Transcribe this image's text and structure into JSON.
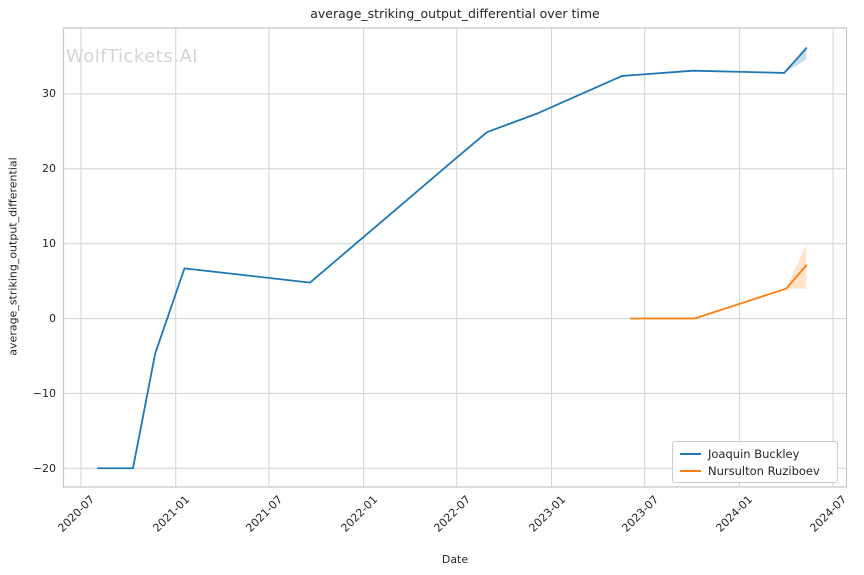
{
  "chart_data": {
    "type": "line",
    "title": "average_striking_output_differential over time",
    "xlabel": "Date",
    "ylabel": "average_striking_output_differential",
    "watermark": "WolfTickets.AI",
    "grid": true,
    "legend_position": "lower right",
    "xlim": [
      "2020-05-28",
      "2024-07-27"
    ],
    "ylim": [
      -22.5,
      38.8
    ],
    "x_ticks": [
      "2020-07",
      "2021-01",
      "2021-07",
      "2022-01",
      "2022-07",
      "2023-01",
      "2023-07",
      "2024-01",
      "2024-07"
    ],
    "y_ticks": [
      -20,
      -10,
      0,
      10,
      20,
      30
    ],
    "series": [
      {
        "name": "Joaquin Buckley",
        "color": "#1f77b4",
        "points": [
          [
            "2020-08-03",
            -20
          ],
          [
            "2020-10-10",
            -20
          ],
          [
            "2020-11-22",
            -4.7
          ],
          [
            "2021-01-18",
            6.7
          ],
          [
            "2021-09-19",
            4.8
          ],
          [
            "2022-07-01",
            21.5
          ],
          [
            "2022-08-29",
            24.9
          ],
          [
            "2022-12-05",
            27.4
          ],
          [
            "2023-05-18",
            32.4
          ],
          [
            "2023-10-03",
            33.1
          ],
          [
            "2024-03-28",
            32.8
          ],
          [
            "2024-05-10",
            36.1
          ]
        ],
        "band": [
          [
            "2024-03-28",
            32.8,
            32.8
          ],
          [
            "2024-05-10",
            34.6,
            36.4
          ]
        ],
        "band_alpha": 0.25
      },
      {
        "name": "Nursulton Ruziboev",
        "color": "#ff7f0e",
        "points": [
          [
            "2023-06-04",
            0
          ],
          [
            "2023-10-06",
            0
          ],
          [
            "2024-04-01",
            4.0
          ],
          [
            "2024-05-10",
            7.1
          ]
        ],
        "band": [
          [
            "2024-04-01",
            4.0,
            4.0
          ],
          [
            "2024-05-10",
            4.0,
            9.9
          ]
        ],
        "band_alpha": 0.22
      }
    ],
    "colors": {
      "grid": "#d6d6d6",
      "spine": "#c6c6c6",
      "text": "#262626",
      "watermark": "#d4d4d4"
    }
  }
}
